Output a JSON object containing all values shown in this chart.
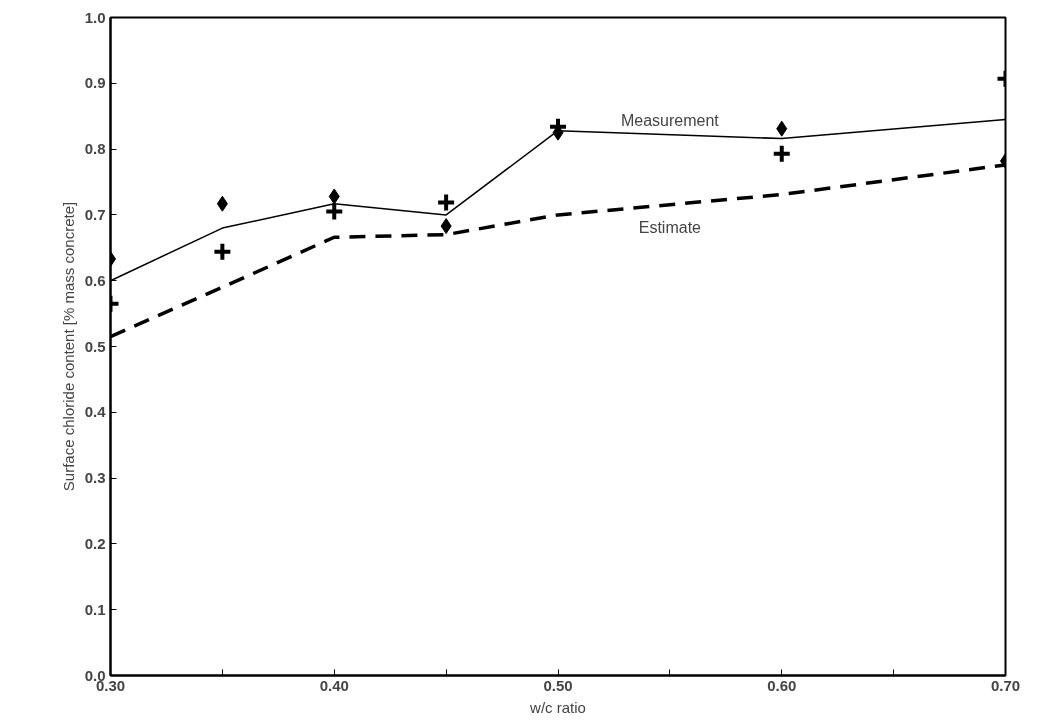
{
  "chart_data": {
    "type": "line",
    "xlabel": "w/c ratio",
    "ylabel": "Surface chloride content [% mass concrete]",
    "x": [
      0.3,
      0.35,
      0.4,
      0.45,
      0.5,
      0.6,
      0.7
    ],
    "series": [
      {
        "name": "Measurement",
        "color": "#000000",
        "line_style": "solid",
        "values": [
          0.6,
          0.68,
          0.717,
          0.7,
          0.828,
          0.816,
          0.845
        ]
      },
      {
        "name": "Estimate",
        "color": "#000000",
        "line_style": "dashed",
        "values": [
          0.515,
          0.59,
          0.666,
          0.67,
          0.7,
          0.731,
          0.776
        ]
      },
      {
        "type": "scatter",
        "color": "#000000",
        "marker": "diamond",
        "values": [
          0.633,
          0.717,
          0.728,
          0.683,
          0.825,
          0.831,
          0.782
        ]
      },
      {
        "type": "scatter",
        "color": "#000000",
        "marker": "cross",
        "values": [
          0.565,
          0.644,
          0.705,
          0.719,
          0.834,
          0.793,
          0.907
        ]
      }
    ],
    "xlim": [
      0.3,
      0.7
    ],
    "xticks": [
      {
        "value": 0.3,
        "label": "0.30"
      },
      {
        "value": 0.35,
        "label": null
      },
      {
        "value": 0.4,
        "label": "0.40"
      },
      {
        "value": 0.45,
        "label": null
      },
      {
        "value": 0.5,
        "label": "0.50"
      },
      {
        "value": 0.55,
        "label": null
      },
      {
        "value": 0.6,
        "label": "0.60"
      },
      {
        "value": 0.65,
        "label": null
      },
      {
        "value": 0.7,
        "label": "0.70"
      }
    ],
    "ylim": [
      0.0,
      1.0
    ],
    "yticks": [
      {
        "value": 0.0,
        "label": "0.0"
      },
      {
        "value": 0.1,
        "label": "0.1"
      },
      {
        "value": 0.2,
        "label": "0.2"
      },
      {
        "value": 0.3,
        "label": "0.3"
      },
      {
        "value": 0.4,
        "label": "0.4"
      },
      {
        "value": 0.5,
        "label": "0.5"
      },
      {
        "value": 0.6,
        "label": "0.6"
      },
      {
        "value": 0.7,
        "label": "0.7"
      },
      {
        "value": 0.8,
        "label": "0.8"
      },
      {
        "value": 0.9,
        "label": "0.9"
      },
      {
        "value": 1.0,
        "label": "1.0"
      }
    ],
    "grid": false,
    "legend": false
  }
}
